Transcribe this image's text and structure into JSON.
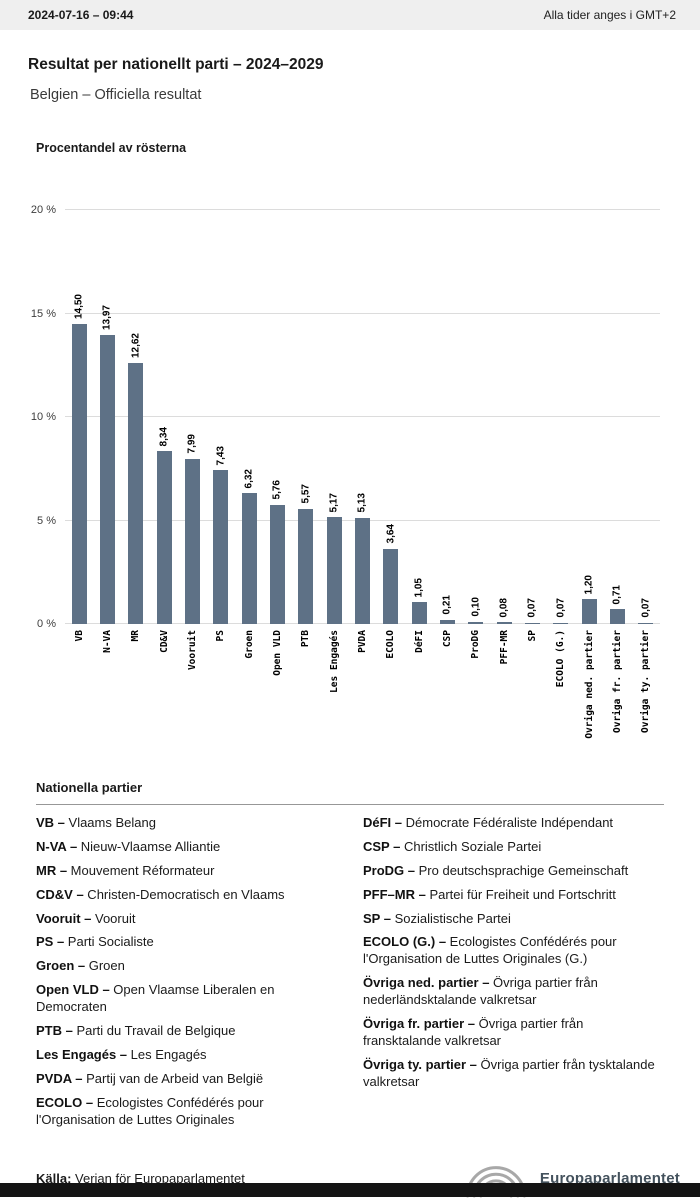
{
  "header": {
    "datetime": "2024-07-16 – 09:44",
    "timezone_note": "Alla tider anges i GMT+2"
  },
  "page": {
    "title": "Resultat per nationellt parti – 2024–2029",
    "subtitle": "Belgien – Officiella resultat"
  },
  "chart_data": {
    "type": "bar",
    "title": "Procentandel av rösterna",
    "categories": [
      "VB",
      "N-VA",
      "MR",
      "CD&V",
      "Vooruit",
      "PS",
      "Groen",
      "Open VLD",
      "PTB",
      "Les Engagés",
      "PVDA",
      "ECOLO",
      "DéFI",
      "CSP",
      "ProDG",
      "PFF-MR",
      "SP",
      "ECOLO (G.)",
      "Övriga ned. partier",
      "Övriga fr. partier",
      "Övriga ty. partier"
    ],
    "values": [
      14.5,
      13.97,
      12.62,
      8.34,
      7.99,
      7.43,
      6.32,
      5.76,
      5.57,
      5.17,
      5.13,
      3.64,
      1.05,
      0.21,
      0.1,
      0.08,
      0.07,
      0.07,
      1.2,
      0.71,
      0.07
    ],
    "value_labels": [
      "14,50",
      "13,97",
      "12,62",
      "8,34",
      "7,99",
      "7,43",
      "6,32",
      "5,76",
      "5,57",
      "5,17",
      "5,13",
      "3,64",
      "1,05",
      "0,21",
      "0,10",
      "0,08",
      "0,07",
      "0,07",
      "1,20",
      "0,71",
      "0,07"
    ],
    "ylim": [
      0,
      20
    ],
    "yticks": [
      "0 %",
      "5 %",
      "10 %",
      "15 %",
      "20 %"
    ],
    "grid": true,
    "legend": false,
    "bar_color": "#5e7186",
    "xlabel": "",
    "ylabel": ""
  },
  "parties_section": {
    "heading": "Nationella partier",
    "left": [
      {
        "abbr": "VB –",
        "name": "Vlaams Belang"
      },
      {
        "abbr": "N-VA –",
        "name": "Nieuw-Vlaamse Alliantie"
      },
      {
        "abbr": "MR –",
        "name": "Mouvement Réformateur"
      },
      {
        "abbr": "CD&V –",
        "name": "Christen-Democratisch en Vlaams"
      },
      {
        "abbr": "Vooruit –",
        "name": "Vooruit"
      },
      {
        "abbr": "PS –",
        "name": "Parti Socialiste"
      },
      {
        "abbr": "Groen –",
        "name": "Groen"
      },
      {
        "abbr": "Open VLD –",
        "name": "Open Vlaamse Liberalen en Democraten"
      },
      {
        "abbr": "PTB –",
        "name": "Parti du Travail de Belgique"
      },
      {
        "abbr": "Les Engagés –",
        "name": "Les Engagés"
      },
      {
        "abbr": "PVDA –",
        "name": "Partij van de Arbeid van België"
      },
      {
        "abbr": "ECOLO –",
        "name": "Ecologistes Confédérés pour l'Organisation de Luttes Originales"
      }
    ],
    "right": [
      {
        "abbr": "DéFI –",
        "name": "Démocrate Fédéraliste Indépendant"
      },
      {
        "abbr": "CSP –",
        "name": "Christlich Soziale Partei"
      },
      {
        "abbr": "ProDG –",
        "name": "Pro deutschsprachige Gemeinschaft"
      },
      {
        "abbr": "PFF–MR –",
        "name": "Partei für Freiheit und Fortschritt"
      },
      {
        "abbr": "SP –",
        "name": "Sozialistische Partei"
      },
      {
        "abbr": "ECOLO (G.) –",
        "name": "Ecologistes Confédérés pour l'Organisation de Luttes Originales (G.)"
      },
      {
        "abbr": "Övriga ned. partier –",
        "name": "Övriga partier från nederländsktalande valkretsar"
      },
      {
        "abbr": "Övriga fr. partier –",
        "name": "Övriga partier från fransktalande valkretsar"
      },
      {
        "abbr": "Övriga ty. partier –",
        "name": "Övriga partier från tysktalande valkretsar"
      }
    ]
  },
  "footer": {
    "source_label": "Källa:",
    "source_text": "Verian för Europaparlamentet",
    "logo_text": "Europaparlamentet"
  },
  "colors": {
    "bar": "#5e7186",
    "topbar_bg": "#efefef",
    "flag_blue": "#003399",
    "flag_star": "#ffcc00"
  }
}
